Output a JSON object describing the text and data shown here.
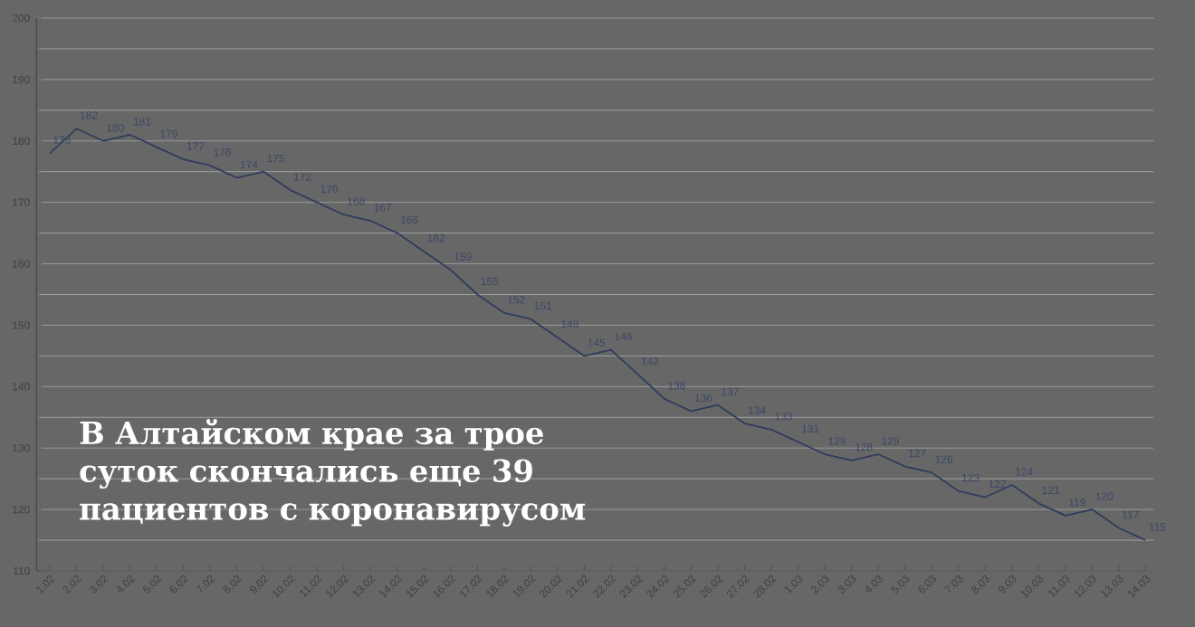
{
  "chart_data": {
    "type": "line",
    "title": "В Алтайском крае за трое суток скончались еще 39 пациентов с коронавирусом",
    "categories": [
      "1.02",
      "2.02",
      "3.02",
      "4.02",
      "5.02",
      "6.02",
      "7.02",
      "8.02",
      "9.02",
      "10.02",
      "11.02",
      "12.02",
      "13.02",
      "14.02",
      "15.02",
      "16.02",
      "17.02",
      "18.02",
      "19.02",
      "20.02",
      "21.02",
      "22.02",
      "23.02",
      "24.02",
      "25.02",
      "26.02",
      "27.02",
      "28.02",
      "1.03",
      "2.03",
      "3.03",
      "4.03",
      "5.03",
      "6.03",
      "7.03",
      "8.03",
      "9.03",
      "10.03",
      "11.03",
      "12.03",
      "13.03",
      "14.03"
    ],
    "values": [
      178,
      182,
      180,
      181,
      179,
      177,
      176,
      174,
      175,
      172,
      170,
      168,
      167,
      165,
      162,
      159,
      155,
      152,
      151,
      148,
      145,
      146,
      142,
      138,
      136,
      137,
      134,
      133,
      131,
      129,
      128,
      129,
      127,
      126,
      123,
      122,
      124,
      121,
      119,
      120,
      117,
      115
    ],
    "color": "#2e3d5a",
    "ylim": [
      110,
      200
    ],
    "yticks": [
      110,
      120,
      130,
      140,
      150,
      160,
      170,
      180,
      190,
      200
    ],
    "grid": "y",
    "marker": "none",
    "line_style": "solid",
    "data_labels": true
  }
}
